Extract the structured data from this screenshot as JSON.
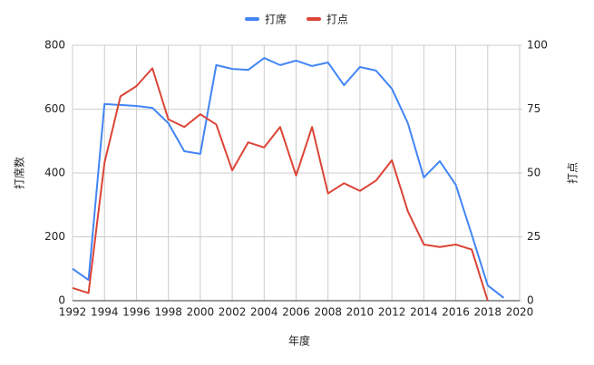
{
  "chart_data": {
    "type": "line",
    "x": [
      1992,
      1993,
      1994,
      1995,
      1996,
      1997,
      1998,
      1999,
      2000,
      2001,
      2002,
      2003,
      2004,
      2005,
      2006,
      2007,
      2008,
      2009,
      2010,
      2011,
      2012,
      2013,
      2014,
      2015,
      2016,
      2017,
      2018,
      2019
    ],
    "series": [
      {
        "name": "打席",
        "color": "#4285f4",
        "axis": "y",
        "values": [
          100,
          65,
          616,
          613,
          610,
          604,
          556,
          468,
          460,
          738,
          726,
          723,
          760,
          738,
          752,
          735,
          746,
          675,
          732,
          721,
          664,
          556,
          386,
          437,
          363,
          207,
          48,
          9
        ]
      },
      {
        "name": "打点",
        "color": "#db4437",
        "axis": "y2",
        "values": [
          5,
          3,
          54,
          80,
          84,
          91,
          71,
          68,
          73,
          69,
          51,
          62,
          60,
          68,
          49,
          68,
          42,
          46,
          43,
          47,
          55,
          35,
          22,
          21,
          22,
          20,
          0,
          null
        ]
      }
    ],
    "x_label": "年度",
    "y_label": "打席数",
    "y2_label": "打点",
    "xlim": [
      1992,
      2020
    ],
    "xticks": [
      1992,
      1994,
      1996,
      1998,
      2000,
      2002,
      2004,
      2006,
      2008,
      2010,
      2012,
      2014,
      2016,
      2018,
      2020
    ],
    "ylim": [
      0,
      800
    ],
    "yticks": [
      0,
      200,
      400,
      600,
      800
    ],
    "y2lim": [
      0,
      100
    ],
    "y2ticks": [
      0,
      25,
      50,
      75,
      100
    ],
    "grid": true,
    "legend": "top"
  }
}
